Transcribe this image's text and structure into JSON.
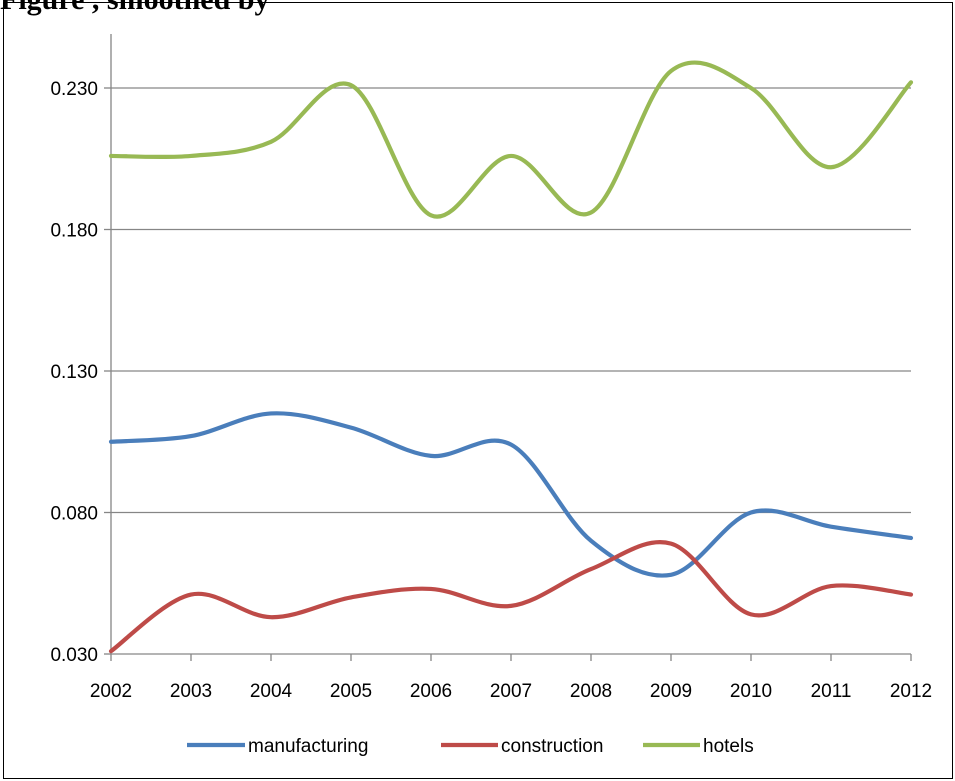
{
  "chart_data": {
    "type": "line",
    "title": "",
    "visible_title_fragment": "Figure                                    , smoothed by",
    "xlabel": "",
    "ylabel": "",
    "categories": [
      "2002",
      "2003",
      "2004",
      "2005",
      "2006",
      "2007",
      "2008",
      "2009",
      "2010",
      "2011",
      "2012"
    ],
    "y_ticks": [
      "0.030",
      "0.080",
      "0.130",
      "0.180",
      "0.230"
    ],
    "ylim": [
      0.03,
      0.23
    ],
    "grid": true,
    "smoothed": true,
    "legend_position": "bottom",
    "series": [
      {
        "name": "manufacturing",
        "color": "#4a7ebb",
        "values": [
          0.105,
          0.107,
          0.115,
          0.11,
          0.1,
          0.104,
          0.07,
          0.058,
          0.08,
          0.075,
          0.071
        ]
      },
      {
        "name": "construction",
        "color": "#be4b48",
        "values": [
          0.031,
          0.051,
          0.043,
          0.05,
          0.053,
          0.047,
          0.06,
          0.069,
          0.044,
          0.054,
          0.051
        ]
      },
      {
        "name": "hotels",
        "color": "#98b954",
        "values": [
          0.206,
          0.206,
          0.211,
          0.231,
          0.185,
          0.206,
          0.186,
          0.236,
          0.23,
          0.202,
          0.232
        ]
      }
    ]
  }
}
